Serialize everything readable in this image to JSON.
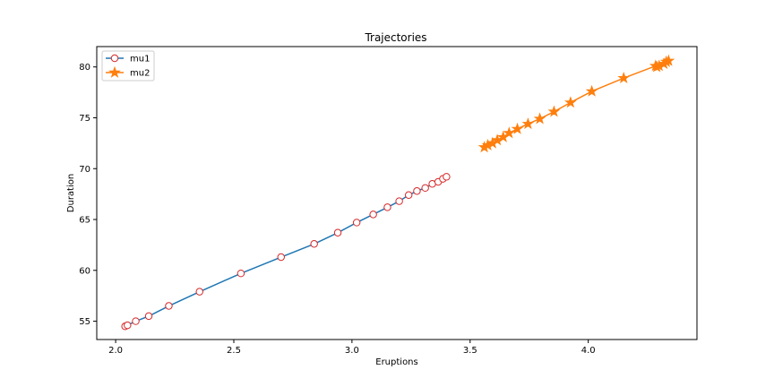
{
  "chart_data": {
    "type": "line",
    "title": "Trajectories",
    "xlabel": "Eruptions",
    "ylabel": "Duration",
    "xlim": [
      1.92,
      4.46
    ],
    "ylim": [
      53.2,
      82.0
    ],
    "xticks": [
      2.0,
      2.5,
      3.0,
      3.5,
      4.0
    ],
    "yticks": [
      55,
      60,
      65,
      70,
      75,
      80
    ],
    "xtick_labels": [
      "2.0",
      "2.5",
      "3.0",
      "3.5",
      "4.0"
    ],
    "ytick_labels": [
      "55",
      "60",
      "65",
      "70",
      "75",
      "80"
    ],
    "grid": false,
    "legend_position": "upper-left",
    "series": [
      {
        "name": "mu1",
        "color": "#1f77b4",
        "marker": "circle-open",
        "marker_edge_color": "#d62728",
        "x": [
          2.04,
          2.05,
          2.085,
          2.14,
          2.225,
          2.355,
          2.53,
          2.7,
          2.84,
          2.94,
          3.02,
          3.09,
          3.15,
          3.2,
          3.24,
          3.275,
          3.31,
          3.34,
          3.365,
          3.385,
          3.4
        ],
        "y": [
          54.5,
          54.6,
          55.0,
          55.5,
          56.5,
          57.9,
          59.7,
          61.3,
          62.6,
          63.7,
          64.7,
          65.5,
          66.2,
          66.8,
          67.4,
          67.8,
          68.1,
          68.5,
          68.7,
          69.0,
          69.2
        ]
      },
      {
        "name": "mu2",
        "color": "#ff7f0e",
        "marker": "star",
        "x": [
          3.56,
          3.575,
          3.595,
          3.615,
          3.64,
          3.665,
          3.7,
          3.745,
          3.795,
          3.855,
          3.925,
          4.015,
          4.15,
          4.285,
          4.29,
          4.3,
          4.32,
          4.33,
          4.34
        ],
        "y": [
          72.1,
          72.3,
          72.5,
          72.8,
          73.1,
          73.5,
          73.9,
          74.4,
          74.9,
          75.6,
          76.5,
          77.6,
          78.9,
          80.1,
          80.0,
          80.1,
          80.3,
          80.5,
          80.6
        ]
      }
    ]
  }
}
